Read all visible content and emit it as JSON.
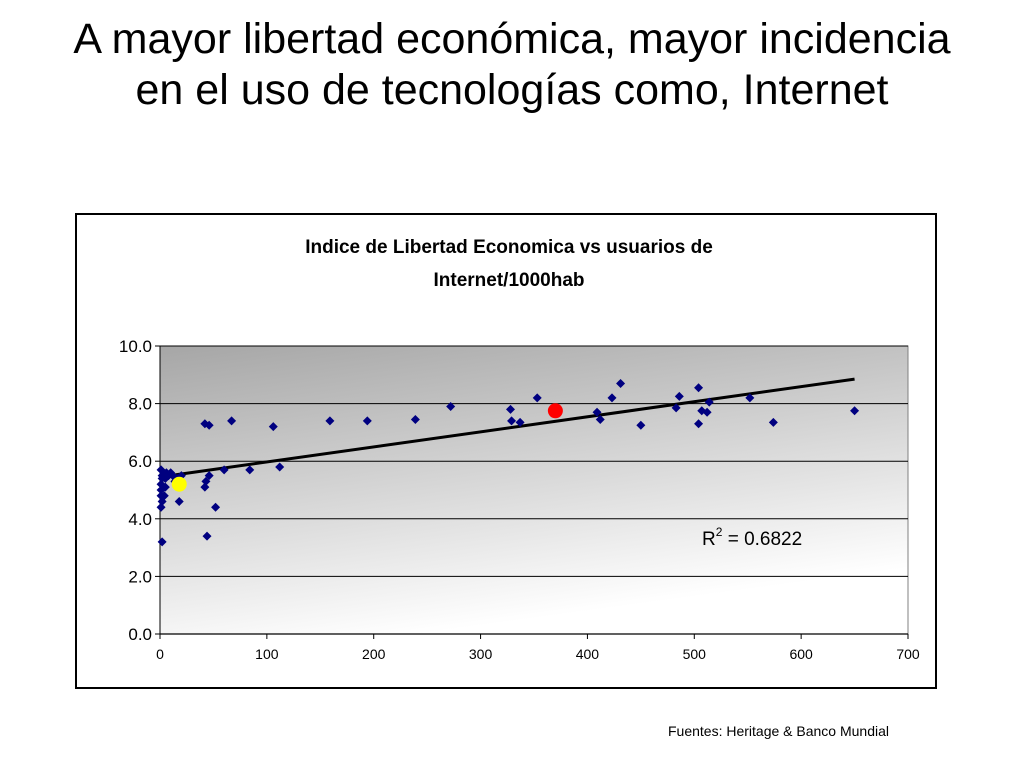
{
  "slide": {
    "title": "A mayor libertad económica, mayor incidencia en el uso de tecnologías como, Internet",
    "source_note": "Fuentes: Heritage & Banco Mundial"
  },
  "chart_data": {
    "type": "scatter",
    "title": "Indice de Libertad Economica vs usuarios de Internet/1000hab",
    "title_lines": [
      "Indice de Libertad Economica vs usuarios de",
      "Internet/1000hab"
    ],
    "xlabel": "",
    "ylabel": "",
    "xlim": [
      0,
      700
    ],
    "ylim": [
      0,
      10
    ],
    "x_ticks": [
      0,
      100,
      200,
      300,
      400,
      500,
      600,
      700
    ],
    "y_ticks": [
      "0.0",
      "2.0",
      "4.0",
      "6.0",
      "8.0",
      "10.0"
    ],
    "grid": "horizontal",
    "legend": "none",
    "series": [
      {
        "color": "#000080",
        "marker": "diamond",
        "points": [
          [
            2,
            3.2
          ],
          [
            1,
            4.4
          ],
          [
            2,
            4.6
          ],
          [
            1,
            4.8
          ],
          [
            1,
            5.0
          ],
          [
            1,
            5.2
          ],
          [
            2,
            5.4
          ],
          [
            2,
            5.5
          ],
          [
            1,
            5.7
          ],
          [
            4,
            4.8
          ],
          [
            5,
            5.1
          ],
          [
            5,
            5.4
          ],
          [
            6,
            5.6
          ],
          [
            8,
            5.5
          ],
          [
            10,
            5.6
          ],
          [
            12,
            5.5
          ],
          [
            14,
            5.3
          ],
          [
            16,
            5.4
          ],
          [
            18,
            4.6
          ],
          [
            20,
            5.5
          ],
          [
            42,
            5.1
          ],
          [
            43,
            5.3
          ],
          [
            46,
            5.5
          ],
          [
            44,
            3.4
          ],
          [
            52,
            4.4
          ],
          [
            60,
            5.7
          ],
          [
            42,
            7.3
          ],
          [
            46,
            7.25
          ],
          [
            67,
            7.4
          ],
          [
            84,
            5.7
          ],
          [
            106,
            7.2
          ],
          [
            112,
            5.8
          ],
          [
            159,
            7.4
          ],
          [
            194,
            7.4
          ],
          [
            239,
            7.45
          ],
          [
            272,
            7.9
          ],
          [
            328,
            7.8
          ],
          [
            329,
            7.4
          ],
          [
            337,
            7.35
          ],
          [
            353,
            8.2
          ],
          [
            409,
            7.7
          ],
          [
            412,
            7.45
          ],
          [
            423,
            8.2
          ],
          [
            431,
            8.7
          ],
          [
            450,
            7.25
          ],
          [
            483,
            7.85
          ],
          [
            486,
            8.25
          ],
          [
            504,
            8.55
          ],
          [
            504,
            7.3
          ],
          [
            507,
            7.75
          ],
          [
            512,
            7.7
          ],
          [
            514,
            8.05
          ],
          [
            552,
            8.2
          ],
          [
            574,
            7.35
          ],
          [
            650,
            7.75
          ]
        ]
      }
    ],
    "highlighted_points": [
      {
        "x": 370,
        "y": 7.75,
        "color": "#ff0000"
      },
      {
        "x": 18,
        "y": 5.2,
        "color": "#ffff00"
      }
    ],
    "trendline": {
      "from": [
        0,
        5.45
      ],
      "to": [
        650,
        8.85
      ],
      "color": "#000000"
    },
    "annotation": {
      "base": "R",
      "superscript": "2",
      "text": " = 0.6822"
    },
    "colors": {
      "plot_gradient_top": "#a6a6a6",
      "plot_gradient_bottom": "#ffffff",
      "gridline": "#000000"
    }
  }
}
